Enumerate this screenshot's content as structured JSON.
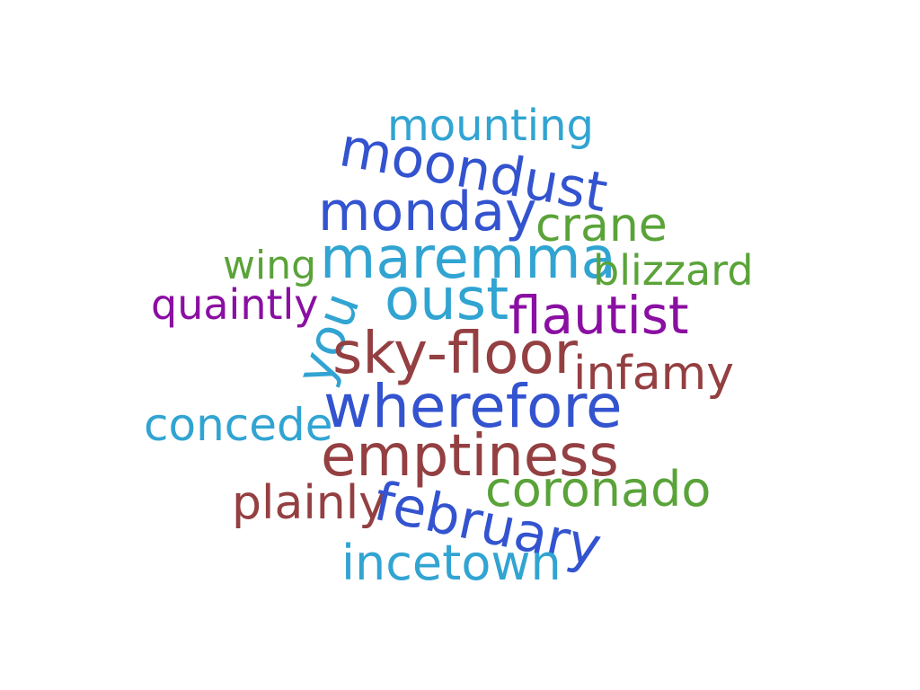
{
  "words": {
    "mounting": {
      "text": "mounting",
      "color": "#31a4d2"
    },
    "moondust": {
      "text": "moondust",
      "color": "#3353cf"
    },
    "monday": {
      "text": "monday",
      "color": "#3353cf"
    },
    "crane": {
      "text": "crane",
      "color": "#5aa339"
    },
    "wing": {
      "text": "wing",
      "color": "#5aa339"
    },
    "maremma": {
      "text": "maremma",
      "color": "#31a4d2"
    },
    "blizzard": {
      "text": "blizzard",
      "color": "#5aa339"
    },
    "quaintly": {
      "text": "quaintly",
      "color": "#8a0fa2"
    },
    "you": {
      "text": "you",
      "color": "#31a4d2"
    },
    "oust": {
      "text": "oust",
      "color": "#31a4d2"
    },
    "flautist": {
      "text": "flautist",
      "color": "#8a0fa2"
    },
    "sky_floor": {
      "text": "sky-floor",
      "color": "#943f41"
    },
    "infamy": {
      "text": "infamy",
      "color": "#943f41"
    },
    "wherefore": {
      "text": "wherefore",
      "color": "#3353cf"
    },
    "concede": {
      "text": "concede",
      "color": "#31a4d2"
    },
    "emptiness": {
      "text": "emptiness",
      "color": "#943f41"
    },
    "plainly": {
      "text": "plainly",
      "color": "#943f41"
    },
    "february": {
      "text": "february",
      "color": "#3353cf"
    },
    "coronado": {
      "text": "coronado",
      "color": "#5aa339"
    },
    "incetown": {
      "text": "incetown",
      "color": "#31a4d2"
    }
  }
}
